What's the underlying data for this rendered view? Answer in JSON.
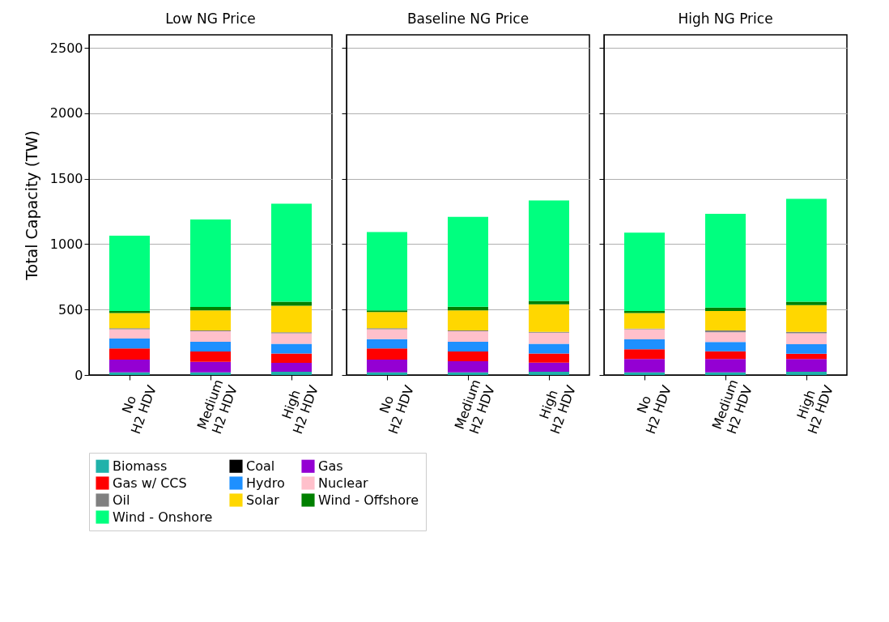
{
  "chart_data": [
    {
      "type": "bar",
      "stacked": true,
      "title": "Low NG Price",
      "ylabel": "Total Capacity (TW)",
      "categories": [
        "No\nH2 HDV",
        "Medium\nH2 HDV",
        "High\nH2 HDV"
      ],
      "ylim": [
        0,
        2600
      ],
      "yticks": [
        0,
        500,
        1000,
        1500,
        2000,
        2500
      ],
      "grid": "y",
      "legend": "bottom",
      "series": [
        {
          "name": "Biomass",
          "color": "#20b2aa",
          "values": [
            20,
            20,
            24
          ]
        },
        {
          "name": "Coal",
          "color": "#000000",
          "values": [
            0,
            0,
            0
          ]
        },
        {
          "name": "Gas",
          "color": "#9400d3",
          "values": [
            98,
            81,
            69
          ]
        },
        {
          "name": "Gas w/ CCS",
          "color": "#ff0000",
          "values": [
            85,
            78,
            71
          ]
        },
        {
          "name": "Hydro",
          "color": "#1e90ff",
          "values": [
            75,
            75,
            74
          ]
        },
        {
          "name": "Nuclear",
          "color": "#ffc0cb",
          "values": [
            71,
            81,
            81
          ]
        },
        {
          "name": "Oil",
          "color": "#808080",
          "values": [
            8,
            6,
            8
          ]
        },
        {
          "name": "Solar",
          "color": "#ffd700",
          "values": [
            116,
            152,
            203
          ]
        },
        {
          "name": "Wind - Offshore",
          "color": "#008000",
          "values": [
            16,
            27,
            30
          ]
        },
        {
          "name": "Wind - Onshore",
          "color": "#00ff7f",
          "values": [
            575,
            668,
            749
          ]
        }
      ]
    },
    {
      "type": "bar",
      "stacked": true,
      "title": "Baseline NG Price",
      "categories": [
        "No\nH2 HDV",
        "Medium\nH2 HDV",
        "High\nH2 HDV"
      ],
      "ylim": [
        0,
        2600
      ],
      "yticks": [
        0,
        500,
        1000,
        1500,
        2000,
        2500
      ],
      "grid": "y",
      "tick_labels": "x",
      "series": [
        {
          "color": "#20b2aa",
          "values": [
            20,
            20,
            24
          ]
        },
        {
          "color": "#000000",
          "values": [
            0,
            0,
            0
          ]
        },
        {
          "color": "#9400d3",
          "values": [
            98,
            86,
            71
          ]
        },
        {
          "color": "#ff0000",
          "values": [
            85,
            73,
            69
          ]
        },
        {
          "color": "#1e90ff",
          "values": [
            71,
            75,
            74
          ]
        },
        {
          "color": "#ffc0cb",
          "values": [
            75,
            81,
            85
          ]
        },
        {
          "color": "#808080",
          "values": [
            8,
            6,
            6
          ]
        },
        {
          "color": "#ffd700",
          "values": [
            124,
            152,
            211
          ]
        },
        {
          "color": "#008000",
          "values": [
            12,
            29,
            26
          ]
        },
        {
          "color": "#00ff7f",
          "values": [
            599,
            686,
            768
          ]
        }
      ]
    },
    {
      "type": "bar",
      "stacked": true,
      "title": "High NG Price",
      "categories": [
        "No\nH2 HDV",
        "Medium\nH2 HDV",
        "High\nH2 HDV"
      ],
      "ylim": [
        0,
        2600
      ],
      "yticks": [
        0,
        500,
        1000,
        1500,
        2000,
        2500
      ],
      "grid": "y",
      "tick_labels": "x",
      "series": [
        {
          "color": "#20b2aa",
          "values": [
            20,
            20,
            24
          ]
        },
        {
          "color": "#000000",
          "values": [
            0,
            0,
            0
          ]
        },
        {
          "color": "#9400d3",
          "values": [
            102,
            102,
            98
          ]
        },
        {
          "color": "#ff0000",
          "values": [
            75,
            59,
            40
          ]
        },
        {
          "color": "#1e90ff",
          "values": [
            75,
            71,
            74
          ]
        },
        {
          "color": "#ffc0cb",
          "values": [
            77,
            75,
            83
          ]
        },
        {
          "color": "#808080",
          "values": [
            6,
            14,
            10
          ]
        },
        {
          "color": "#ffd700",
          "values": [
            118,
            148,
            205
          ]
        },
        {
          "color": "#008000",
          "values": [
            16,
            27,
            26
          ]
        },
        {
          "color": "#00ff7f",
          "values": [
            599,
            716,
            786
          ]
        }
      ]
    }
  ]
}
